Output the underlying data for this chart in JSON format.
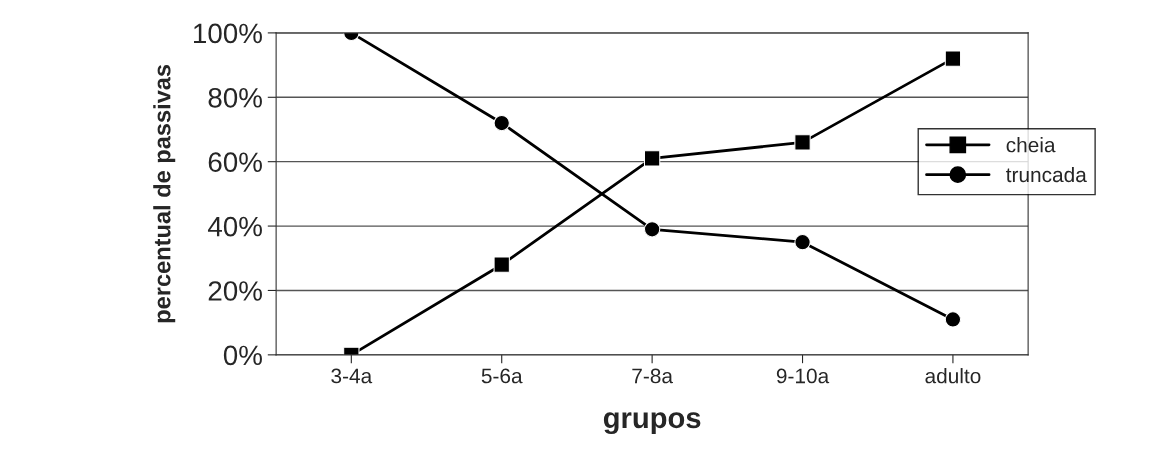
{
  "chart_data": {
    "type": "line",
    "xlabel": "grupos",
    "ylabel": "percentual de passivas",
    "categories": [
      "3-4a",
      "5-6a",
      "7-8a",
      "9-10a",
      "adulto"
    ],
    "series": [
      {
        "name": "cheia",
        "color": "#000000",
        "marker": "square",
        "values": [
          0,
          28,
          61,
          66,
          92
        ]
      },
      {
        "name": "truncada",
        "color": "#000000",
        "marker": "circle",
        "values": [
          100,
          72,
          39,
          35,
          11
        ]
      }
    ],
    "ylim": [
      0,
      100
    ],
    "yticks": [
      {
        "value": 0,
        "label": "0%"
      },
      {
        "value": 20,
        "label": "20%"
      },
      {
        "value": 40,
        "label": "40%"
      },
      {
        "value": 60,
        "label": "60%"
      },
      {
        "value": 80,
        "label": "80%"
      },
      {
        "value": 100,
        "label": "100%"
      }
    ],
    "grid": "y",
    "legend": "right",
    "line_style": "solid"
  }
}
